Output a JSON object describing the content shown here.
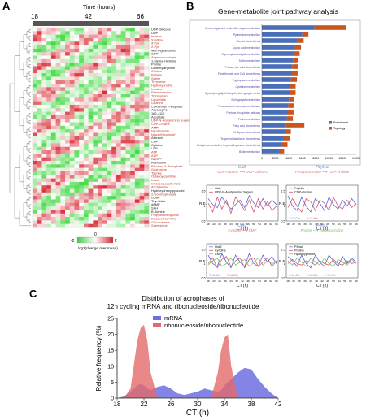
{
  "panel_a": {
    "letter": "A",
    "time_title": "Time (hours)",
    "time_ticks": [
      "18",
      "42",
      "66"
    ],
    "colorbar_ticks": [
      "-2",
      "0",
      "2"
    ],
    "colorbar_label": "log2(change over mean)",
    "metabolites": [
      {
        "name": "UDP-Glucose",
        "red": false
      },
      {
        "name": "UDP",
        "red": false
      },
      {
        "name": "Inosine",
        "red": true
      },
      {
        "name": "Xanthine",
        "red": true
      },
      {
        "name": "4-Pyr",
        "red": true
      },
      {
        "name": "2-Pyr",
        "red": true
      },
      {
        "name": "Methylguanosines",
        "red": false
      },
      {
        "name": "GDP",
        "red": false
      },
      {
        "name": "Argininosuccinate",
        "red": true
      },
      {
        "name": "1-Methyl-Histidine",
        "red": false
      },
      {
        "name": "Proline",
        "red": false
      },
      {
        "name": "Dimethylarginine",
        "red": false
      },
      {
        "name": "Choline",
        "red": true
      },
      {
        "name": "Betaine",
        "red": true
      },
      {
        "name": "Serine",
        "red": true
      },
      {
        "name": "Threonine",
        "red": true
      },
      {
        "name": "Hydroxyproline",
        "red": true
      },
      {
        "name": "Leucine",
        "red": true
      },
      {
        "name": "Phenylalanine",
        "red": true
      },
      {
        "name": "Tryptophan",
        "red": true
      },
      {
        "name": "Lipoamide",
        "red": true
      },
      {
        "name": "Guanine",
        "red": true
      },
      {
        "name": "Carbamoyl Phosphate",
        "red": false
      },
      {
        "name": "Asparagine",
        "red": false
      },
      {
        "name": "162->110",
        "red": false
      },
      {
        "name": "Aspartate",
        "red": false
      },
      {
        "name": "UDP-N-Acetylamino Sugars",
        "red": true
      },
      {
        "name": "CDP-Choline",
        "red": true
      },
      {
        "name": "AMP",
        "red": false
      },
      {
        "name": "Nicotinamide",
        "red": true
      },
      {
        "name": "Niacin(Nicotinate)",
        "red": true
      },
      {
        "name": "Allantoin",
        "red": false
      },
      {
        "name": "CMP",
        "red": false
      },
      {
        "name": "Cytidine",
        "red": false
      },
      {
        "name": "UTP",
        "red": false
      },
      {
        "name": "ATP",
        "red": true
      },
      {
        "name": "ADP",
        "red": true
      },
      {
        "name": "NADP+",
        "red": true
      },
      {
        "name": "Adenosine",
        "red": false
      },
      {
        "name": "Ribulose-5-Phosphate",
        "red": true
      },
      {
        "name": "Guanosine",
        "red": true
      },
      {
        "name": "Taurine",
        "red": true
      },
      {
        "name": "Octanoylcarnitine",
        "red": true
      },
      {
        "name": "Uracil",
        "red": true
      },
      {
        "name": "Imidazoleacetic Acid",
        "red": true
      },
      {
        "name": "Acetylserine",
        "red": true
      },
      {
        "name": "Hydroxyphenylpyruvate",
        "red": false
      },
      {
        "name": "2-Isopropylmalate",
        "red": true
      },
      {
        "name": "cGMP",
        "red": false
      },
      {
        "name": "Thymidine",
        "red": false
      },
      {
        "name": "dAMP",
        "red": false
      },
      {
        "name": "SAH",
        "red": false
      },
      {
        "name": "B-Alanine",
        "red": false
      },
      {
        "name": "Propylenediolycerol",
        "red": true
      },
      {
        "name": "Decanoylcarnitine",
        "red": true
      },
      {
        "name": "Glucosamine",
        "red": true
      },
      {
        "name": "Spermidine",
        "red": true
      }
    ]
  },
  "panel_b": {
    "letter": "B",
    "title": "Gene-metabolite joint pathway analysis",
    "legend": [
      {
        "label": "Enrichment",
        "color": "#4a6fb8"
      },
      {
        "label": "Topology",
        "color": "#c8561e"
      }
    ],
    "xticks": [
      "0",
      "2000",
      "4000",
      "6000",
      "8000",
      "10000",
      "12000",
      "14000"
    ],
    "chart_data": {
      "type": "bar",
      "orientation": "horizontal",
      "stacked": true,
      "xlim": [
        0,
        14000
      ],
      "categories": [
        "Amino sugar and nucleotide sugar metabolism",
        "Pyrimidine metabolism",
        "Steroid biosynthesis",
        "Lipoic acid metabolism",
        "Glycerophospholipid metabolism",
        "Sulfur metabolism",
        "Primary bile acid biosynthesis",
        "Pantothenate and CoA biosynthesis",
        "Tryptophan metabolism",
        "Cysteine metabolism",
        "Glycosphingolipid biosynthesis - ganglio series",
        "Sphingolipid metabolism",
        "Fructose and mannose metabolism",
        "Pentose phosphate pathway",
        "Purine metabolism",
        "Fatty acid biosynthesis",
        "N-Glycan biosynthesis",
        "Terpenoid backbone biosynthesis",
        "Ubiquinone and other terpenoid-quinone biosynthesis",
        "Biotin metabolism"
      ],
      "series": [
        {
          "name": "Enrichment",
          "values": [
            7800,
            6000,
            5200,
            4900,
            4700,
            4600,
            4500,
            4400,
            4300,
            4200,
            4100,
            4000,
            3900,
            3800,
            3700,
            3600,
            3400,
            3200,
            2900,
            2600
          ]
        },
        {
          "name": "Topology",
          "values": [
            4700,
            900,
            1000,
            900,
            900,
            800,
            900,
            900,
            900,
            800,
            900,
            800,
            800,
            900,
            900,
            2700,
            900,
            900,
            900,
            700
          ]
        }
      ]
    },
    "mini_charts": [
      {
        "gene": "Galk",
        "gene_color": "#6f86c4",
        "subtitle": "UDP-GlcNAc ⟶ UDP-GalNAc",
        "subtitle_color": "#d87a7a",
        "legend": [
          {
            "label": "Galk",
            "color": "#7080d8"
          },
          {
            "label": "UDP-N-Acetylamino Sugars",
            "color": "#d45a6a"
          }
        ],
        "ylabel": "R.E.",
        "yticks": [
          "0.5",
          "1",
          "1.5"
        ],
        "ylim": [
          0.5,
          1.7
        ],
        "annotations": [],
        "series": [
          {
            "name": "Galk",
            "color": "#5a64d8",
            "values": [
              1.25,
              1.05,
              0.95,
              1.3,
              1.1,
              0.9,
              1.05,
              1.2,
              0.95,
              1.35,
              1.1,
              0.95,
              1.25,
              1.0,
              1.2,
              1.05
            ]
          },
          {
            "name": "UDP-N-Acetylamino Sugars",
            "color": "#d45a6a",
            "values": [
              1.1,
              0.8,
              1.3,
              0.9,
              1.2,
              0.75,
              1.3,
              1.1,
              0.85,
              1.2,
              0.8,
              1.25,
              0.9,
              1.15,
              0.85,
              1.0
            ]
          }
        ]
      },
      {
        "gene": "Pcyt1a",
        "gene_color": "#6f86c4",
        "subtitle": "Phosphocholine ⟶ CDP-choline",
        "subtitle_color": "#d87a7a",
        "legend": [
          {
            "label": "Pcyt1a",
            "color": "#7080d8"
          },
          {
            "label": "CDP-choline",
            "color": "#d45a6a"
          }
        ],
        "ylabel": "R.E.",
        "yticks": [
          "0.5",
          "1",
          "1.5"
        ],
        "ylim": [
          0.5,
          1.7
        ],
        "annotations": [
          "T=12.02h",
          "T=11.66h"
        ],
        "series": [
          {
            "name": "Pcyt1a",
            "color": "#5a64d8",
            "values": [
              1.35,
              1.0,
              0.85,
              1.3,
              1.0,
              0.8,
              1.25,
              1.1,
              0.85,
              1.3,
              1.05,
              0.9,
              1.2,
              1.0,
              1.25,
              1.05
            ]
          },
          {
            "name": "CDP-choline",
            "color": "#d45a6a",
            "values": [
              0.95,
              1.25,
              1.0,
              0.8,
              1.25,
              1.15,
              0.85,
              1.2,
              1.1,
              0.85,
              1.3,
              1.0,
              0.9,
              1.2,
              0.95,
              1.1
            ]
          }
        ]
      },
      {
        "gene": "Uck2",
        "gene_color": "#6f86c4",
        "subtitle": "Cytidine ⟶ CMP",
        "subtitle_color": "#d87a7a",
        "legend": [
          {
            "label": "Uck2",
            "color": "#7080d8"
          },
          {
            "label": "Cytidine",
            "color": "#d45a6a"
          },
          {
            "label": "CMP",
            "color": "#7bc26a"
          }
        ],
        "ylabel": "R.E.",
        "yticks": [
          "0.5",
          "1",
          "1.5"
        ],
        "ylim": [
          0.5,
          1.7
        ],
        "annotations": [
          "T=11.60h",
          "T=11.63h"
        ],
        "series": [
          {
            "name": "Uck2",
            "color": "#5a64d8",
            "values": [
              1.3,
              1.0,
              0.9,
              1.35,
              1.05,
              0.85,
              1.3,
              1.05,
              0.9,
              1.35,
              1.0,
              0.9,
              1.3,
              1.05,
              1.25,
              1.0
            ]
          },
          {
            "name": "Cytidine",
            "color": "#d45a6a",
            "values": [
              1.0,
              1.2,
              0.85,
              1.15,
              1.25,
              0.9,
              1.1,
              1.2,
              0.85,
              1.15,
              1.2,
              0.9,
              1.05,
              1.2,
              0.9,
              1.1
            ]
          },
          {
            "name": "CMP",
            "color": "#7bc26a",
            "values": [
              0.95,
              1.1,
              1.2,
              0.9,
              1.0,
              1.2,
              0.95,
              1.05,
              1.15,
              0.9,
              1.05,
              1.2,
              0.95,
              1.1,
              1.0,
              1.05
            ]
          }
        ]
      },
      {
        "gene": "P4ha1",
        "gene_color": "#6f86c4",
        "subtitle": "Proline ⟶ Hydroxyproline",
        "subtitle_color": "#7bc26a",
        "legend": [
          {
            "label": "P4ha1",
            "color": "#7080d8"
          },
          {
            "label": "Proline",
            "color": "#d45a6a"
          },
          {
            "label": "Hydroxyproline",
            "color": "#7bc26a"
          }
        ],
        "ylabel": "R.E.",
        "yticks": [
          "0.5",
          "1",
          "1.5"
        ],
        "ylim": [
          0.5,
          1.7
        ],
        "annotations": [
          "T=11.47h",
          "T=11.59h",
          "T=11.28h"
        ],
        "series": [
          {
            "name": "P4ha1",
            "color": "#5a64d8",
            "values": [
              1.25,
              1.1,
              0.9,
              1.3,
              1.0,
              0.85,
              1.3,
              1.05,
              0.9,
              1.3,
              1.1,
              0.9,
              1.25,
              1.0,
              1.2,
              1.05
            ]
          },
          {
            "name": "Proline",
            "color": "#d45a6a",
            "values": [
              1.0,
              1.15,
              1.0,
              0.95,
              1.1,
              1.05,
              0.95,
              1.1,
              1.0,
              0.95,
              1.15,
              1.0,
              0.95,
              1.1,
              1.0,
              1.05
            ]
          },
          {
            "name": "Hydroxyproline",
            "color": "#7bc26a",
            "values": [
              1.1,
              0.95,
              1.2,
              1.05,
              0.9,
              1.2,
              1.05,
              0.95,
              1.2,
              1.0,
              0.9,
              1.15,
              1.05,
              0.95,
              1.15,
              1.0
            ]
          }
        ]
      }
    ],
    "mini_xticks": [
      "18",
      "20",
      "22",
      "24",
      "26",
      "28",
      "30",
      "32",
      "34",
      "36",
      "38",
      "40",
      "42",
      "44",
      "46",
      "48",
      "50",
      "52",
      "54",
      "56",
      "58",
      "60",
      "62",
      "64",
      "66"
    ],
    "mini_xlabel": "CT (h)"
  },
  "panel_c": {
    "letter": "C",
    "title_line1": "Distribution of acrophases of",
    "title_line2": "12h cycling mRNA and ribonucleoside/ribonucleotide",
    "ylabel": "Relative frequency (%)",
    "xlabel": "CT (h)",
    "xticks": [
      "18",
      "22",
      "26",
      "30",
      "34",
      "38",
      "42"
    ],
    "yticks": [
      "0",
      "5",
      "10",
      "15",
      "20",
      "25"
    ],
    "chart_data": {
      "type": "area",
      "xlim": [
        18,
        42
      ],
      "ylim": [
        0,
        25
      ],
      "x": [
        18,
        19,
        20,
        21,
        21.5,
        22,
        22.5,
        23,
        24,
        25,
        26,
        27,
        28,
        29,
        30,
        31,
        32,
        33,
        33.5,
        34,
        34.5,
        35,
        36,
        37,
        38,
        39,
        40,
        41,
        42
      ],
      "series": [
        {
          "name": "mRNA",
          "color": "#6d6fe0",
          "values": [
            0,
            0.5,
            2,
            4,
            4.5,
            4,
            3,
            2.5,
            3.5,
            4,
            3,
            1.5,
            1,
            1.5,
            2,
            3,
            2.5,
            2,
            2.5,
            4,
            5,
            6,
            8,
            9.5,
            9,
            6,
            3.5,
            1.5,
            0
          ]
        },
        {
          "name": "ribonucleoside/ribonucleotide",
          "color": "#e46a6a",
          "values": [
            0,
            0,
            3,
            18,
            22,
            23,
            18,
            8,
            0,
            0,
            0,
            0,
            0,
            0,
            0,
            0,
            0,
            8,
            15,
            19,
            20,
            10,
            0,
            0,
            0,
            0,
            0,
            0,
            0
          ]
        }
      ]
    }
  }
}
